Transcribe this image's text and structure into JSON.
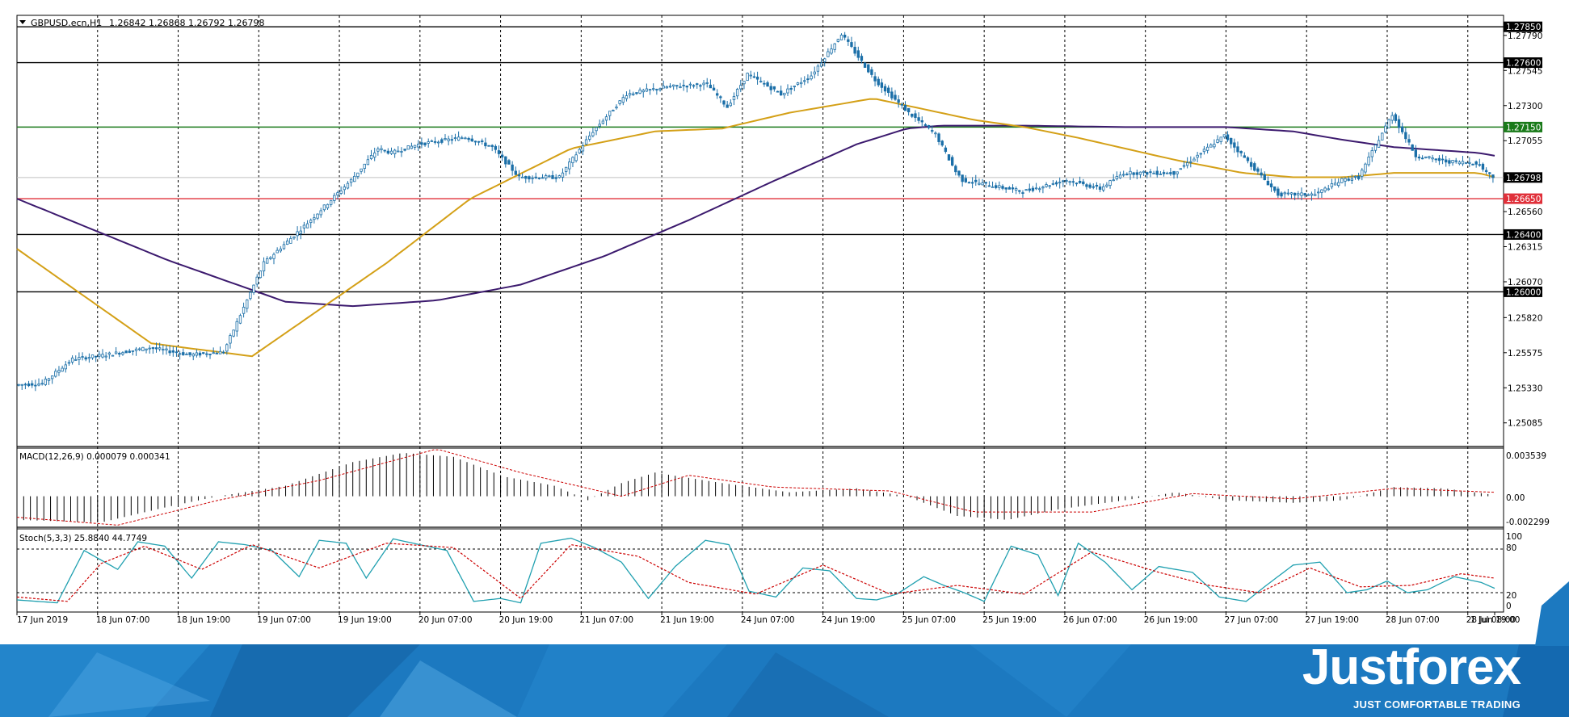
{
  "header": {
    "symbol": "GBPUSD.ecn,H1",
    "ohlc": "1.26842 1.26868 1.26792 1.26798"
  },
  "price_axis": {
    "ticks": [
      "1.27790",
      "1.27545",
      "1.27300",
      "1.27055",
      "1.26560",
      "1.26315",
      "1.26070",
      "1.25820",
      "1.25575",
      "1.25330",
      "1.25085"
    ],
    "levels": [
      {
        "label": "1.27850",
        "value": 1.2785,
        "color": "#000000"
      },
      {
        "label": "1.27600",
        "value": 1.276,
        "color": "#000000"
      },
      {
        "label": "1.27150",
        "value": 1.2715,
        "color": "#1a7a1a"
      },
      {
        "label": "1.26650",
        "value": 1.2665,
        "color": "#e0303a"
      },
      {
        "label": "1.26400",
        "value": 1.264,
        "color": "#000000"
      },
      {
        "label": "1.26000",
        "value": 1.26,
        "color": "#000000"
      }
    ],
    "current_price": "1.26798"
  },
  "time_axis": {
    "labels": [
      "17 Jun 2019",
      "18 Jun 07:00",
      "18 Jun 19:00",
      "19 Jun 07:00",
      "19 Jun 19:00",
      "20 Jun 07:00",
      "20 Jun 19:00",
      "21 Jun 07:00",
      "21 Jun 19:00",
      "24 Jun 07:00",
      "24 Jun 19:00",
      "25 Jun 07:00",
      "25 Jun 19:00",
      "26 Jun 07:00",
      "26 Jun 19:00",
      "27 Jun 07:00",
      "27 Jun 19:00",
      "28 Jun 07:00",
      "28 Jun 19:00",
      "1 Jul 08:00"
    ]
  },
  "macd_panel": {
    "title": "MACD(12,26,9) 0.000079 0.000341",
    "ticks": [
      "0.003539",
      "0.00",
      "-0.002299"
    ]
  },
  "stoch_panel": {
    "title": "Stoch(5,3,3) 25.8840 44.7749",
    "ticks": [
      "100",
      "80",
      "20",
      "0"
    ]
  },
  "brand": {
    "name": "Justforex",
    "tagline": "JUST COMFORTABLE TRADING"
  },
  "colors": {
    "candle": "#1b6fa8",
    "ma_fast": "#d4a017",
    "ma_slow": "#3c1a6e",
    "macd_signal": "#cc0000",
    "stoch_main": "#20a0b0",
    "stoch_signal": "#cc0000",
    "footer_blue": "#1c79c0"
  },
  "chart_data": {
    "type": "candlestick",
    "symbol": "GBPUSD.ecn",
    "timeframe": "H1",
    "ylim": [
      1.2492,
      1.2793
    ],
    "price_path": {
      "x": [
        0,
        8,
        17,
        27,
        40,
        52,
        62,
        74,
        87,
        100,
        108,
        112,
        120,
        134,
        142,
        150,
        162,
        172,
        182,
        194,
        206,
        212,
        218,
        228,
        237,
        246,
        256,
        266,
        274,
        280,
        282,
        300,
        313,
        323,
        330,
        345,
        360,
        376,
        387,
        395,
        400,
        410,
        417,
        426,
        435,
        440
      ],
      "y": [
        1.2535,
        1.2536,
        1.2553,
        1.2556,
        1.2561,
        1.2556,
        1.2558,
        1.262,
        1.2648,
        1.2678,
        1.27,
        1.2697,
        1.2703,
        1.2708,
        1.2701,
        1.268,
        1.268,
        1.2712,
        1.2738,
        1.2743,
        1.2745,
        1.2729,
        1.2752,
        1.2738,
        1.2751,
        1.278,
        1.2748,
        1.2725,
        1.271,
        1.2684,
        1.2678,
        1.267,
        1.2678,
        1.2672,
        1.2683,
        1.2683,
        1.2709,
        1.2668,
        1.2668,
        1.2678,
        1.268,
        1.2724,
        1.2695,
        1.2691,
        1.269,
        1.268
      ]
    },
    "ma_fast": {
      "x": [
        0,
        40,
        70,
        110,
        135,
        165,
        190,
        210,
        230,
        255,
        285,
        300,
        315,
        330,
        345,
        365,
        380,
        395,
        410,
        435,
        440
      ],
      "y": [
        1.263,
        1.2564,
        1.2555,
        1.262,
        1.2665,
        1.27,
        1.2712,
        1.2714,
        1.2725,
        1.2735,
        1.272,
        1.2715,
        1.2708,
        1.27,
        1.2692,
        1.2683,
        1.268,
        1.268,
        1.2683,
        1.2683,
        1.268
      ]
    },
    "ma_slow": {
      "x": [
        0,
        45,
        80,
        100,
        125,
        150,
        175,
        200,
        225,
        250,
        265,
        275,
        300,
        330,
        360,
        380,
        395,
        410,
        435,
        440
      ],
      "y": [
        1.2665,
        1.2622,
        1.2593,
        1.259,
        1.2594,
        1.2605,
        1.2625,
        1.265,
        1.2677,
        1.2703,
        1.2714,
        1.2716,
        1.2716,
        1.2715,
        1.2715,
        1.2712,
        1.2706,
        1.2701,
        1.2697,
        1.2695
      ]
    },
    "macd": {
      "ylim": [
        -0.002299,
        0.003539
      ],
      "x": [
        0,
        25,
        45,
        60,
        80,
        100,
        115,
        130,
        145,
        160,
        170,
        180,
        190,
        210,
        230,
        250,
        265,
        280,
        295,
        310,
        330,
        345,
        360,
        380,
        395,
        410,
        425,
        440
      ],
      "y": [
        -0.0018,
        -0.002,
        -0.0008,
        0.0,
        0.0008,
        0.0026,
        0.0033,
        0.003,
        0.0015,
        0.0008,
        -0.0003,
        0.001,
        0.0018,
        0.001,
        0.0003,
        0.0006,
        0.0,
        -0.0015,
        -0.0018,
        -0.001,
        -0.0003,
        0.0003,
        -0.0003,
        -0.0005,
        -0.0003,
        0.0007,
        0.0006,
        0.0001
      ]
    },
    "macd_signal": {
      "x": [
        0,
        30,
        60,
        90,
        125,
        150,
        180,
        200,
        225,
        260,
        285,
        320,
        350,
        380,
        410,
        440
      ],
      "y": [
        -0.0016,
        -0.0022,
        -0.0003,
        0.0012,
        0.0036,
        0.0018,
        0.0,
        0.0016,
        0.0007,
        0.0004,
        -0.0012,
        -0.0012,
        0.0002,
        -0.0002,
        0.0006,
        0.0003
      ]
    },
    "stoch": {
      "ylim": [
        0,
        100
      ],
      "x": [
        0,
        12,
        20,
        30,
        36,
        44,
        52,
        60,
        68,
        76,
        84,
        90,
        98,
        104,
        112,
        120,
        128,
        136,
        144,
        150,
        156,
        165,
        172,
        180,
        188,
        196,
        205,
        212,
        218,
        226,
        234,
        242,
        250,
        256,
        262,
        270,
        276,
        282,
        288,
        296,
        304,
        310,
        316,
        324,
        332,
        340,
        350,
        358,
        366,
        372,
        380,
        388,
        396,
        402,
        408,
        414,
        420,
        428,
        436,
        440
      ],
      "y": [
        10,
        6,
        78,
        52,
        90,
        84,
        40,
        90,
        86,
        78,
        42,
        92,
        88,
        40,
        94,
        86,
        78,
        8,
        12,
        6,
        88,
        95,
        82,
        62,
        12,
        56,
        92,
        86,
        22,
        14,
        54,
        50,
        12,
        10,
        18,
        42,
        30,
        20,
        8,
        84,
        72,
        16,
        88,
        62,
        24,
        56,
        48,
        14,
        8,
        30,
        58,
        62,
        20,
        24,
        36,
        20,
        24,
        42,
        34,
        26
      ]
    },
    "stoch_signal": {
      "x": [
        0,
        15,
        25,
        38,
        55,
        70,
        90,
        110,
        130,
        150,
        165,
        185,
        200,
        220,
        240,
        260,
        280,
        300,
        320,
        340,
        355,
        370,
        385,
        400,
        415,
        430,
        440
      ],
      "y": [
        14,
        8,
        60,
        84,
        52,
        86,
        54,
        88,
        82,
        12,
        86,
        70,
        34,
        18,
        58,
        18,
        30,
        18,
        76,
        48,
        30,
        20,
        54,
        28,
        30,
        46,
        40
      ]
    }
  }
}
